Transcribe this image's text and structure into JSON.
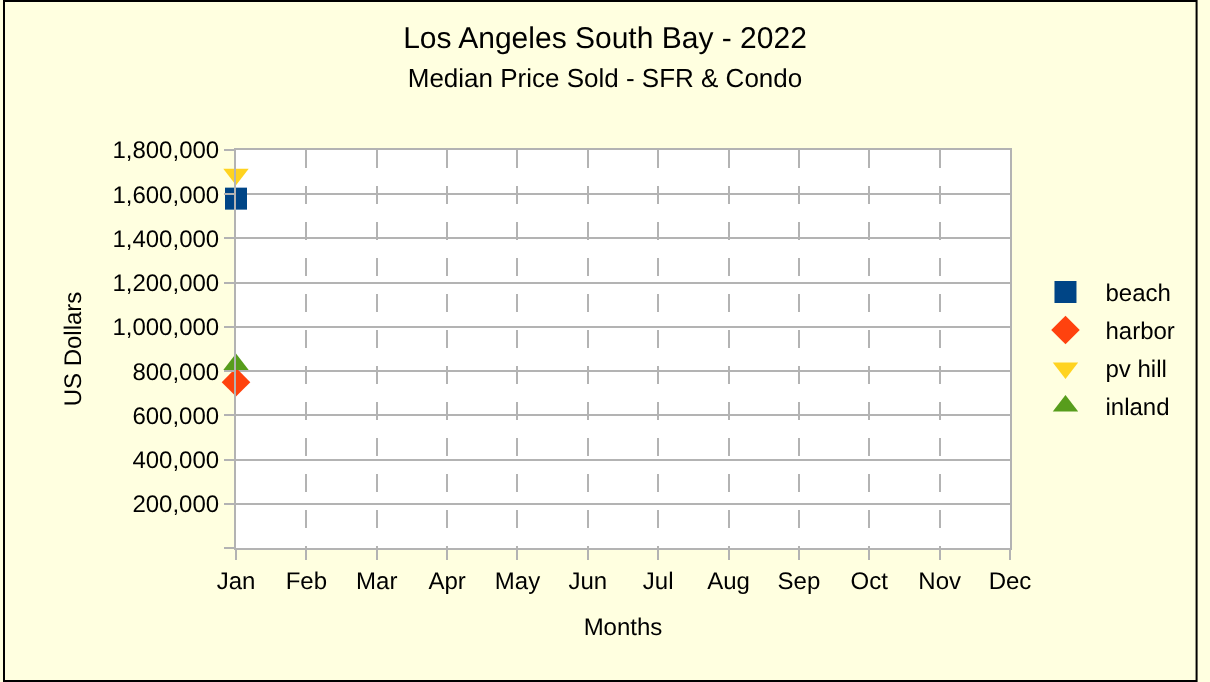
{
  "chart_data": {
    "type": "scatter",
    "title": "Los Angeles South Bay - 2022",
    "subtitle": "Median Price Sold - SFR & Condo",
    "xlabel": "Months",
    "ylabel": "US Dollars",
    "categories": [
      "Jan",
      "Feb",
      "Mar",
      "Apr",
      "May",
      "Jun",
      "Jul",
      "Aug",
      "Sep",
      "Oct",
      "Nov",
      "Dec"
    ],
    "series": [
      {
        "name": "beach",
        "color": "#004586",
        "marker": "square",
        "values": [
          1580000,
          null,
          null,
          null,
          null,
          null,
          null,
          null,
          null,
          null,
          null,
          null
        ]
      },
      {
        "name": "harbor",
        "color": "#ff420e",
        "marker": "diamond",
        "values": [
          750000,
          null,
          null,
          null,
          null,
          null,
          null,
          null,
          null,
          null,
          null,
          null
        ]
      },
      {
        "name": "pv hill",
        "color": "#ffd320",
        "marker": "triangle-down",
        "values": [
          1690000,
          null,
          null,
          null,
          null,
          null,
          null,
          null,
          null,
          null,
          null,
          null
        ]
      },
      {
        "name": "inland",
        "color": "#579d1c",
        "marker": "triangle",
        "values": [
          830000,
          null,
          null,
          null,
          null,
          null,
          null,
          null,
          null,
          null,
          null,
          null
        ]
      }
    ],
    "ylim": [
      0,
      1800000
    ],
    "yticks": [
      {
        "value": 0,
        "label": null
      },
      {
        "value": 200000,
        "label": "200,000"
      },
      {
        "value": 400000,
        "label": "400,000"
      },
      {
        "value": 600000,
        "label": "600,000"
      },
      {
        "value": 800000,
        "label": "800,000"
      },
      {
        "value": 1000000,
        "label": "1,000,000"
      },
      {
        "value": 1200000,
        "label": "1,200,000"
      },
      {
        "value": 1400000,
        "label": "1,400,000"
      },
      {
        "value": 1600000,
        "label": "1,600,000"
      },
      {
        "value": 1800000,
        "label": "1,800,000"
      }
    ],
    "grid": true,
    "legend": "right"
  }
}
